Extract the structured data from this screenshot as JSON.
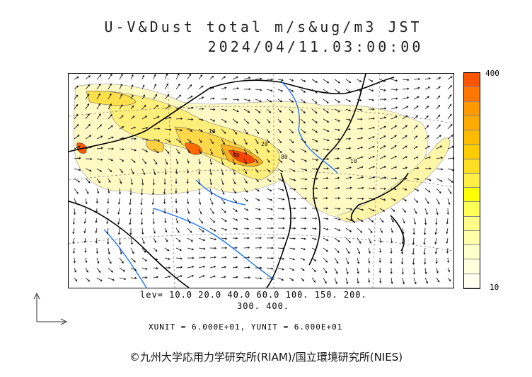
{
  "title": "U-V&Dust total m/s&ug/m3 JST",
  "timestamp": "2024/04/11.03:00:00",
  "colorbar": {
    "max_label": "400",
    "min_label": "10",
    "colors": [
      "#ff5500",
      "#ff7700",
      "#ff9900",
      "#ffaa00",
      "#ffbb00",
      "#ffcc00",
      "#ffdd22",
      "#ffee44",
      "#ffff00",
      "#ffff55",
      "#ffff88",
      "#ffffaa",
      "#ffffcc",
      "#ffffdd",
      "#fffff0"
    ]
  },
  "contour_labels": [
    "10",
    "20",
    "40",
    "80",
    "10"
  ],
  "levels_line1": "lev= 10.0 20.0 40.0 60.0 100. 150. 200.",
  "levels_line2": "300. 400.",
  "units": "XUNIT = 6.000E+01, YUNIT = 6.000E+01",
  "credit": "©九州大学応用力学研究所(RIAM)/国立環境研究所(NIES)",
  "map_colors": {
    "coast": "#000000",
    "rivers": "#1a73ff",
    "dust_low": "#fff9b8",
    "dust_mid": "#ffe66b",
    "dust_high": "#ff9a1f",
    "dust_peak": "#ff3b00"
  }
}
